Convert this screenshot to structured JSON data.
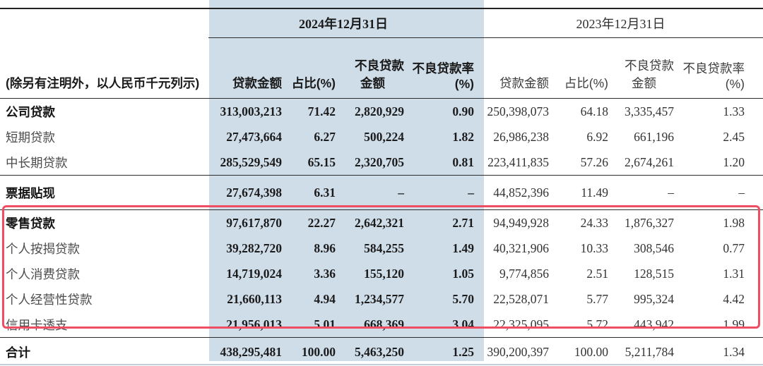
{
  "note": "(除另有注明外，以人民币千元列示)",
  "period_headers": [
    "2024年12月31日",
    "2023年12月31日"
  ],
  "headers": {
    "loan_amount": "贷款金额",
    "share": "占比(%)",
    "npl": "不良贷款",
    "npl_amount2": "金额",
    "npl_rate": "不良贷款率",
    "npl_rate2": "(%)"
  },
  "colors": {
    "band_2024_bg": "#cfdde9",
    "highlight_box_border": "#ee4d62"
  },
  "chart_data": {
    "type": "table",
    "column_groups": [
      "2024年12月31日",
      "2023年12月31日"
    ],
    "columns": [
      "贷款金额",
      "占比(%)",
      "不良贷款金额",
      "不良贷款率(%)"
    ],
    "rows": [
      {
        "label": "公司贷款",
        "bold": true,
        "group_end": false,
        "tall": false,
        "total": false,
        "highlighted": false,
        "y2024": [
          "313,003,213",
          "71.42",
          "2,820,929",
          "0.90"
        ],
        "y2023": [
          "250,398,073",
          "64.18",
          "3,335,457",
          "1.33"
        ]
      },
      {
        "label": "短期贷款",
        "bold": false,
        "group_end": false,
        "tall": false,
        "total": false,
        "highlighted": false,
        "y2024": [
          "27,473,664",
          "6.27",
          "500,224",
          "1.82"
        ],
        "y2023": [
          "26,986,238",
          "6.92",
          "661,196",
          "2.45"
        ]
      },
      {
        "label": "中长期贷款",
        "bold": false,
        "group_end": true,
        "tall": false,
        "total": false,
        "highlighted": false,
        "y2024": [
          "285,529,549",
          "65.15",
          "2,320,705",
          "0.81"
        ],
        "y2023": [
          "223,411,835",
          "57.26",
          "2,674,261",
          "1.20"
        ]
      },
      {
        "label": "票据贴现",
        "bold": true,
        "group_end": true,
        "tall": true,
        "total": false,
        "highlighted": false,
        "y2024": [
          "27,674,398",
          "6.31",
          "–",
          "–"
        ],
        "y2023": [
          "44,852,396",
          "11.49",
          "–",
          "–"
        ]
      },
      {
        "label": "零售贷款",
        "bold": true,
        "group_end": false,
        "tall": false,
        "total": false,
        "highlighted": true,
        "y2024": [
          "97,617,870",
          "22.27",
          "2,642,321",
          "2.71"
        ],
        "y2023": [
          "94,949,928",
          "24.33",
          "1,876,327",
          "1.98"
        ]
      },
      {
        "label": "个人按揭贷款",
        "bold": false,
        "group_end": false,
        "tall": false,
        "total": false,
        "highlighted": true,
        "y2024": [
          "39,282,720",
          "8.96",
          "584,255",
          "1.49"
        ],
        "y2023": [
          "40,321,906",
          "10.33",
          "308,546",
          "0.77"
        ]
      },
      {
        "label": "个人消费贷款",
        "bold": false,
        "group_end": false,
        "tall": false,
        "total": false,
        "highlighted": true,
        "y2024": [
          "14,719,024",
          "3.36",
          "155,120",
          "1.05"
        ],
        "y2023": [
          "9,774,856",
          "2.51",
          "128,515",
          "1.31"
        ]
      },
      {
        "label": "个人经营性贷款",
        "bold": false,
        "group_end": false,
        "tall": false,
        "total": false,
        "highlighted": true,
        "y2024": [
          "21,660,113",
          "4.94",
          "1,234,577",
          "5.70"
        ],
        "y2023": [
          "22,528,071",
          "5.77",
          "995,324",
          "4.42"
        ]
      },
      {
        "label": "信用卡透支",
        "bold": false,
        "group_end": true,
        "tall": false,
        "total": false,
        "highlighted": true,
        "y2024": [
          "21,956,013",
          "5.01",
          "668,369",
          "3.04"
        ],
        "y2023": [
          "22,325,095",
          "5.72",
          "443,942",
          "1.99"
        ]
      },
      {
        "label": "合计",
        "bold": true,
        "group_end": false,
        "tall": false,
        "total": true,
        "highlighted": false,
        "y2024": [
          "438,295,481",
          "100.00",
          "5,463,250",
          "1.25"
        ],
        "y2023": [
          "390,200,397",
          "100.00",
          "5,211,784",
          "1.34"
        ]
      }
    ]
  }
}
